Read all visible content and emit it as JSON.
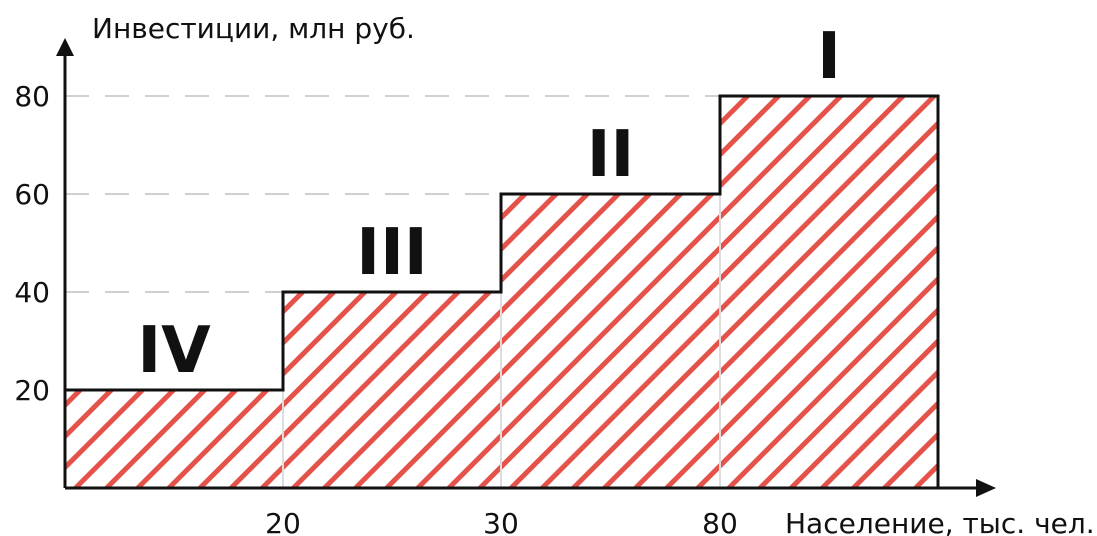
{
  "chart_data": {
    "type": "area",
    "title": "",
    "ylabel": "Инвестиции, млн руб.",
    "xlabel": "Население, тыс. чел.",
    "y_ticks": [
      20,
      40,
      60,
      80
    ],
    "y_tick_labels": [
      "20",
      "40",
      "60",
      "80"
    ],
    "x_ticks": [
      "20",
      "30",
      "80"
    ],
    "ylim": [
      0,
      80
    ],
    "grid": "dashed horizontal at y ticks",
    "colors": {
      "hatch": "#e4524a",
      "outline": "#111111",
      "grid": "#d0d0d0"
    },
    "steps": [
      {
        "label": "IV",
        "x_from": "0",
        "x_to": "20",
        "y": 20
      },
      {
        "label": "III",
        "x_from": "20",
        "x_to": "30",
        "y": 40
      },
      {
        "label": "II",
        "x_from": "30",
        "x_to": "80",
        "y": 60
      },
      {
        "label": "I",
        "x_from": "80",
        "x_to": "",
        "y": 80
      }
    ]
  }
}
